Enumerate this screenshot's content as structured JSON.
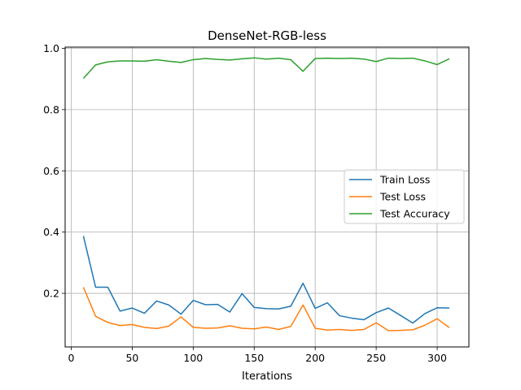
{
  "chart_data": {
    "type": "line",
    "title": "DenseNet-RGB-less",
    "xlabel": "Iterations",
    "ylabel": "",
    "xlim": [
      -5,
      326
    ],
    "ylim": [
      0.025,
      1.004
    ],
    "xticks": [
      0,
      50,
      100,
      150,
      200,
      250,
      300
    ],
    "yticks": [
      0.2,
      0.4,
      0.6,
      0.8,
      1.0
    ],
    "grid": true,
    "legend_position": "center-right",
    "x": [
      10,
      20,
      30,
      40,
      50,
      60,
      70,
      80,
      90,
      100,
      110,
      120,
      130,
      140,
      150,
      160,
      170,
      180,
      190,
      200,
      210,
      220,
      230,
      240,
      250,
      260,
      270,
      280,
      290,
      300,
      310
    ],
    "series": [
      {
        "name": "Train Loss",
        "color": "#1f77b4",
        "values": [
          0.387,
          0.22,
          0.22,
          0.142,
          0.152,
          0.135,
          0.175,
          0.162,
          0.132,
          0.177,
          0.163,
          0.164,
          0.139,
          0.199,
          0.154,
          0.15,
          0.149,
          0.158,
          0.233,
          0.151,
          0.169,
          0.127,
          0.119,
          0.114,
          0.137,
          0.152,
          0.128,
          0.103,
          0.134,
          0.153,
          0.152
        ]
      },
      {
        "name": "Test Loss",
        "color": "#ff7f0e",
        "values": [
          0.22,
          0.125,
          0.105,
          0.095,
          0.098,
          0.089,
          0.085,
          0.093,
          0.123,
          0.089,
          0.086,
          0.087,
          0.094,
          0.086,
          0.084,
          0.09,
          0.082,
          0.092,
          0.162,
          0.086,
          0.08,
          0.082,
          0.079,
          0.082,
          0.104,
          0.078,
          0.079,
          0.081,
          0.096,
          0.117,
          0.088
        ]
      },
      {
        "name": "Test Accuracy",
        "color": "#2ca02c",
        "values": [
          0.902,
          0.946,
          0.956,
          0.959,
          0.959,
          0.958,
          0.963,
          0.958,
          0.954,
          0.963,
          0.967,
          0.964,
          0.962,
          0.966,
          0.969,
          0.965,
          0.968,
          0.963,
          0.925,
          0.967,
          0.968,
          0.967,
          0.968,
          0.965,
          0.957,
          0.968,
          0.967,
          0.968,
          0.959,
          0.947,
          0.966
        ]
      }
    ]
  }
}
